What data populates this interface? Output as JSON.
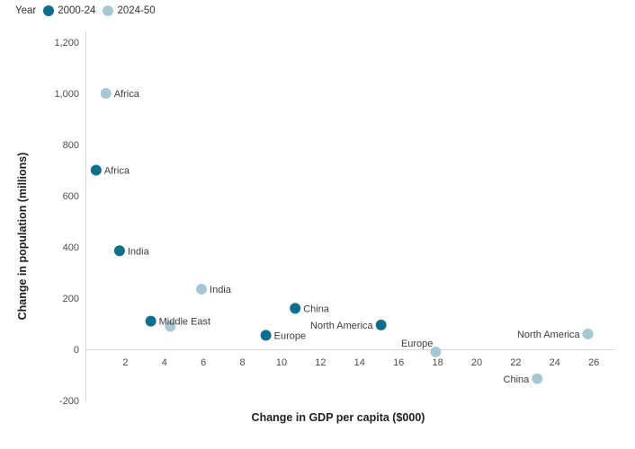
{
  "legend": {
    "title": "Year",
    "items": [
      {
        "label": "2000-24",
        "color": "#0f6e8c"
      },
      {
        "label": "2024-50",
        "color": "#a5c8d4"
      }
    ]
  },
  "chart_data": {
    "type": "scatter",
    "title": "",
    "xlabel": "Change in GDP per capita ($000)",
    "ylabel": "Change in population (millions)",
    "xlim": [
      0,
      27.2
    ],
    "ylim": [
      -245,
      1245
    ],
    "grid": false,
    "legend_position": "top-left",
    "xticks": [
      2,
      4,
      6,
      8,
      10,
      12,
      14,
      16,
      18,
      20,
      22,
      24,
      26
    ],
    "ytick_values": [
      1200,
      1000,
      800,
      600,
      400,
      200,
      0,
      -200
    ],
    "ytick_labels": [
      "1,200",
      "1,000",
      "800",
      "600",
      "400",
      "200",
      "0",
      "-200"
    ],
    "series": [
      {
        "name": "2000-24",
        "color": "#0f6e8c",
        "points": [
          {
            "label": "Africa",
            "x": 0.5,
            "y": 700,
            "label_side": "right"
          },
          {
            "label": "India",
            "x": 1.7,
            "y": 385,
            "label_side": "right"
          },
          {
            "label": "Middle East",
            "x": 3.3,
            "y": 110,
            "label_side": "right"
          },
          {
            "label": "Europe",
            "x": 9.2,
            "y": 55,
            "label_side": "right"
          },
          {
            "label": "China",
            "x": 10.7,
            "y": 160,
            "label_side": "right"
          },
          {
            "label": "North America",
            "x": 15.1,
            "y": 95,
            "label_side": "left"
          }
        ]
      },
      {
        "name": "2024-50",
        "color": "#a5c8d4",
        "points": [
          {
            "label": "Africa",
            "x": 1.0,
            "y": 1000,
            "label_side": "right"
          },
          {
            "label": "India",
            "x": 5.9,
            "y": 235,
            "label_side": "right"
          },
          {
            "label": "Middle East",
            "x": 4.3,
            "y": 90,
            "label_side": "none"
          },
          {
            "label": "Europe",
            "x": 17.9,
            "y": -10,
            "label_side": "left",
            "label_dx": 6,
            "label_dy": -10
          },
          {
            "label": "North America",
            "x": 25.7,
            "y": 60,
            "label_side": "left"
          },
          {
            "label": "China",
            "x": 23.1,
            "y": -115,
            "label_side": "left"
          }
        ]
      }
    ],
    "colors": {
      "axis_line": "#d9d9d9",
      "tick_text": "#4c4c4c",
      "point_label_text": "#3c3c3c",
      "title_text": "#1f1f1f"
    }
  }
}
